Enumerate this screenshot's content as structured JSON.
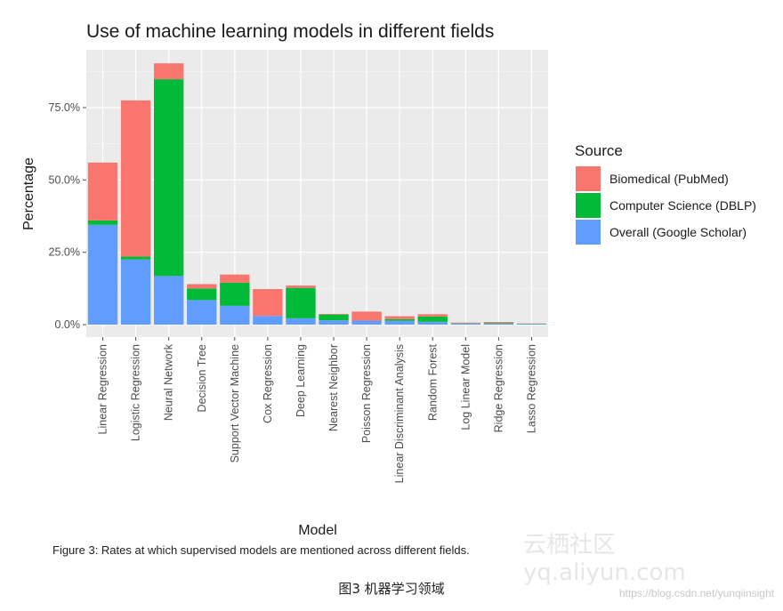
{
  "watermark": {
    "text": "云栖社区 yq.aliyun.com",
    "url": "https://blog.csdn.net/yunqiinsight"
  },
  "figure_caption": "Figure 3: Rates at which supervised models are mentioned across different fields.",
  "chinese_caption": "图3 机器学习领域",
  "chart_data": {
    "type": "bar",
    "stacked": true,
    "title": "Use of machine learning models in different fields",
    "xlabel": "Model",
    "ylabel": "Percentage",
    "ylim": [
      0,
      0.94
    ],
    "yticks": [
      0,
      0.25,
      0.5,
      0.75
    ],
    "ytick_labels": [
      "0.0%",
      "25.0%",
      "50.0%",
      "75.0%"
    ],
    "grid": true,
    "legend_title": "Source",
    "legend_position": "right",
    "categories": [
      "Linear Regression",
      "Logistic Regression",
      "Neural Network",
      "Decision Tree",
      "Support Vector Machine",
      "Cox Regression",
      "Deep Learning",
      "Nearest Neighbor",
      "Poisson Regression",
      "Linear Discriminant Analysis",
      "Random Forest",
      "Log Linear Model",
      "Ridge Regression",
      "Lasso Regression"
    ],
    "series": [
      {
        "name": "Overall (Google Scholar)",
        "color": "#619cff",
        "values": [
          0.345,
          0.225,
          0.168,
          0.085,
          0.065,
          0.03,
          0.022,
          0.015,
          0.014,
          0.013,
          0.01,
          0.004,
          0.004,
          0.002
        ]
      },
      {
        "name": "Computer Science (DBLP)",
        "color": "#00ba38",
        "values": [
          0.015,
          0.01,
          0.68,
          0.04,
          0.08,
          0.0,
          0.105,
          0.02,
          0.0,
          0.006,
          0.018,
          0.001,
          0.002,
          0.001
        ]
      },
      {
        "name": "Biomedical (PubMed)",
        "color": "#f8766d",
        "values": [
          0.2,
          0.54,
          0.055,
          0.015,
          0.028,
          0.093,
          0.008,
          0.002,
          0.031,
          0.01,
          0.008,
          0.002,
          0.003,
          0.001
        ]
      }
    ],
    "legend_order": [
      "Biomedical (PubMed)",
      "Computer Science (DBLP)",
      "Overall (Google Scholar)"
    ]
  }
}
